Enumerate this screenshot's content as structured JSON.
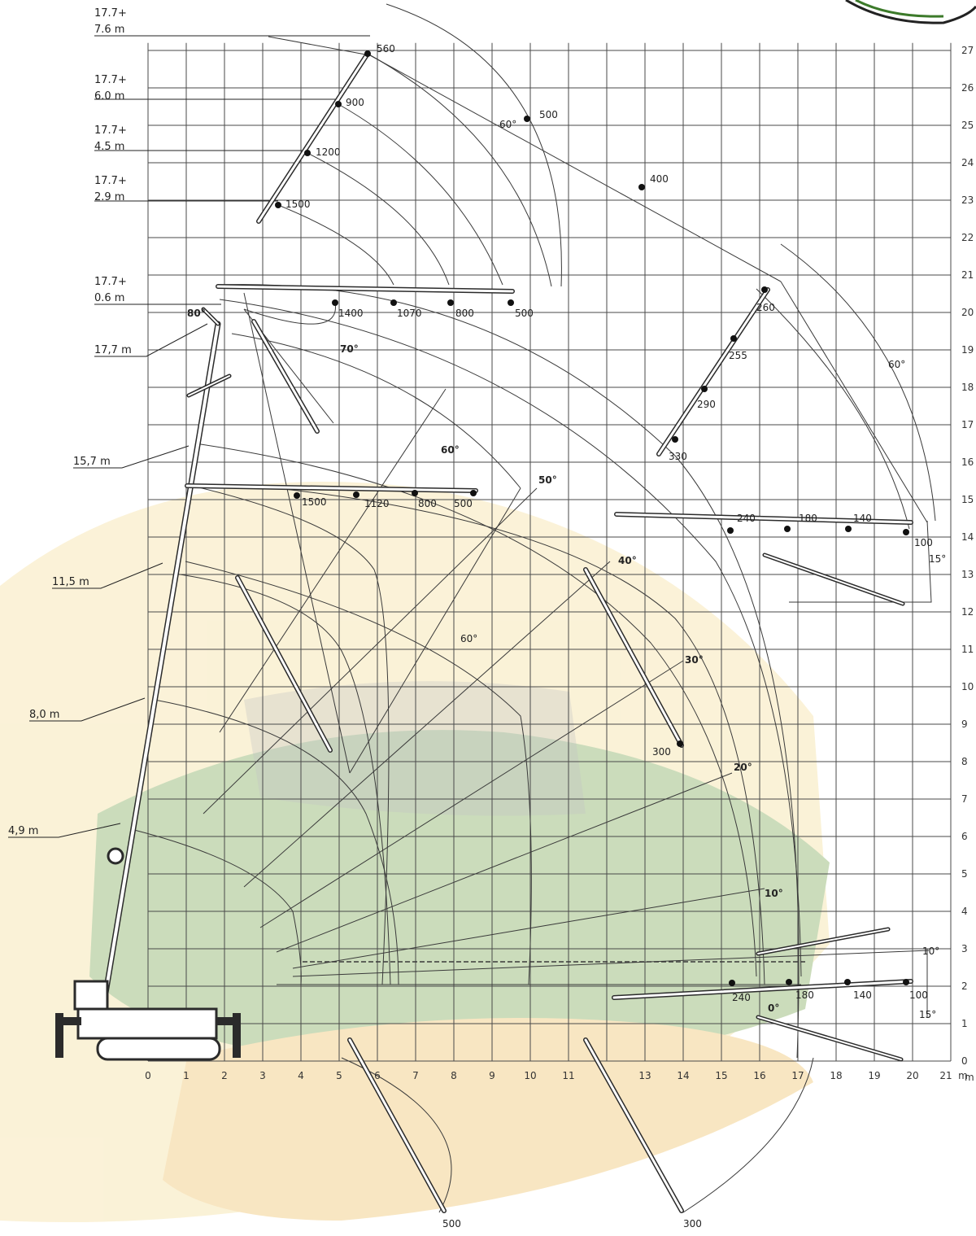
{
  "colors": {
    "grid": "#4a4a4a",
    "boom": "#2b2b2b",
    "arc": "#3a3a3a",
    "watermark_green": "#6f9a4a",
    "watermark_yellow": "#f2d98a",
    "watermark_orange": "#e8a24a"
  },
  "axes": {
    "x_ticks": [
      "0",
      "1",
      "2",
      "3",
      "4",
      "5",
      "6",
      "7",
      "8",
      "9",
      "10",
      "11",
      "13",
      "14",
      "15",
      "16",
      "17",
      "18",
      "19",
      "20"
    ],
    "x_ticks_gap_label": "21",
    "x_unit": "m",
    "y_ticks": [
      "0",
      "1",
      "2",
      "3",
      "4",
      "5",
      "6",
      "7",
      "8",
      "9",
      "10",
      "11",
      "12",
      "13",
      "14",
      "15",
      "16",
      "17",
      "18",
      "19",
      "20",
      "21",
      "22",
      "23",
      "24",
      "25",
      "26",
      "27"
    ],
    "y_unit": "m"
  },
  "boom_labels": [
    {
      "id": "b76",
      "line1": "17.7+",
      "line2": "7.6  m"
    },
    {
      "id": "b60",
      "line1": "17.7+",
      "line2": "6.0  m"
    },
    {
      "id": "b45",
      "line1": "17.7+",
      "line2": "4.5  m"
    },
    {
      "id": "b29",
      "line1": "17.7+",
      "line2": "2.9  m"
    },
    {
      "id": "b06",
      "line1": "17.7+",
      "line2": "0.6  m"
    },
    {
      "id": "b177",
      "line1": "17,7  m",
      "line2": ""
    },
    {
      "id": "b157",
      "line1": "15,7  m",
      "line2": ""
    },
    {
      "id": "b115",
      "line1": "11,5  m",
      "line2": ""
    },
    {
      "id": "b80",
      "line1": "8,0  m",
      "line2": ""
    },
    {
      "id": "b49",
      "line1": "4,9  m",
      "line2": ""
    }
  ],
  "angle_labels": [
    "80°",
    "70°",
    "60°",
    "50°",
    "40°",
    "30°",
    "20°",
    "10°",
    "60°",
    "60°",
    "60°",
    "15°",
    "10°",
    "15°",
    "0°"
  ],
  "load_labels": {
    "jib_upper": [
      "560",
      "900",
      "1200",
      "1500",
      "500",
      "400"
    ],
    "jib_horizontal_top": [
      "1400",
      "1070",
      "800",
      "500"
    ],
    "jib_right_upper": [
      "260",
      "255",
      "290",
      "330"
    ],
    "main_horizontal": [
      "1500",
      "1120",
      "800",
      "500"
    ],
    "right_horizontal_14": [
      "240",
      "180",
      "140",
      "100"
    ],
    "bottom_right": [
      "240",
      "180",
      "140",
      "100"
    ],
    "misc": [
      "300",
      "500",
      "300"
    ]
  }
}
